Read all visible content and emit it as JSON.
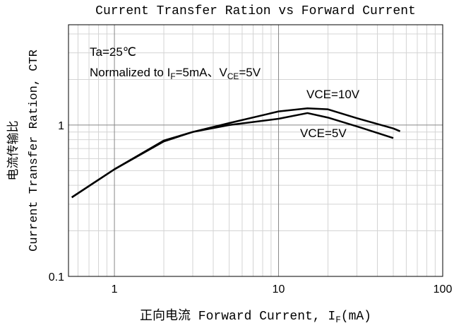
{
  "chart_data": {
    "type": "line",
    "title": "Current Transfer Ration vs Forward Current",
    "y_label": [
      "电流传输比",
      "Current Transfer Ration, CTR"
    ],
    "x_label": [
      "正向电流 Forward Current, I",
      "F",
      "(mA)"
    ],
    "annotations": [
      [
        "Ta=25℃"
      ],
      [
        "Normalized to I",
        "F",
        "=5mA、V",
        "CE",
        "=5V"
      ]
    ],
    "x": [
      0.55,
      1,
      2,
      3,
      5,
      10,
      15,
      20,
      30,
      50,
      55
    ],
    "series": [
      {
        "name": "VCE=10V",
        "color": "#000000",
        "values": [
          0.333,
          0.51,
          0.78,
          0.9,
          1.03,
          1.23,
          1.29,
          1.27,
          1.11,
          0.95,
          0.91
        ]
      },
      {
        "name": "VCE=5V",
        "color": "#000000",
        "values": [
          0.333,
          0.51,
          0.79,
          0.9,
          1.0,
          1.1,
          1.2,
          1.12,
          0.98,
          0.82,
          null
        ]
      }
    ],
    "xlim": [
      0.525,
      100
    ],
    "ylim": [
      0.1,
      4.6
    ],
    "xticks": [
      1,
      10,
      100
    ],
    "yticks": [
      0.1,
      1
    ],
    "log_x": true,
    "log_y": true,
    "grid": true
  }
}
